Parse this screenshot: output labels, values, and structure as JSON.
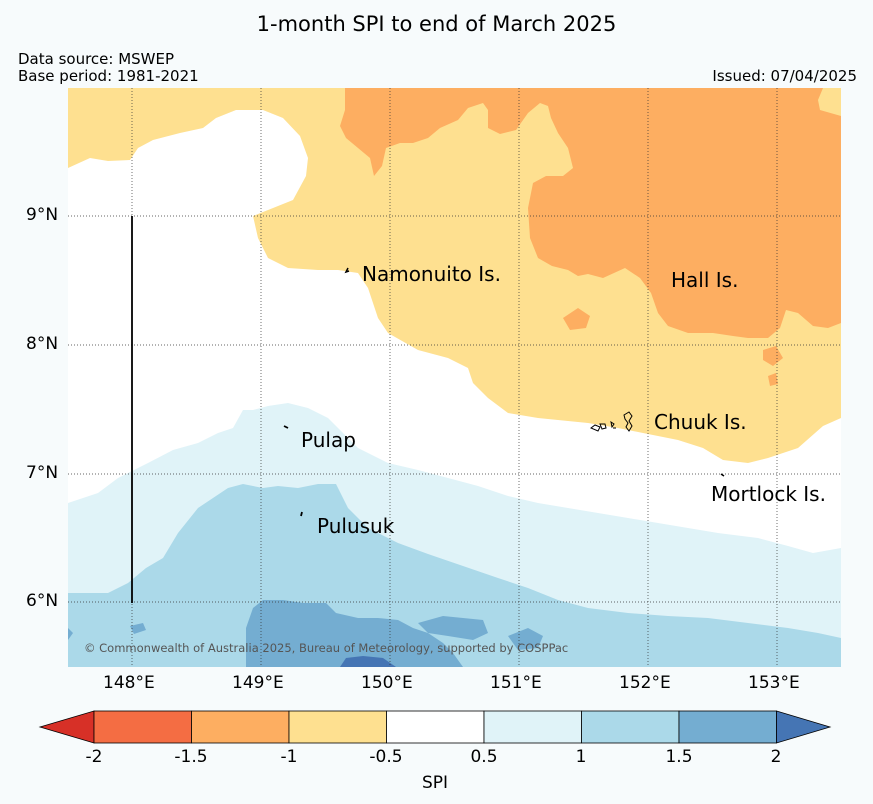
{
  "title": "1-month SPI to end of March 2025",
  "meta": {
    "data_source": "Data source: MSWEP",
    "base_period": "Base period: 1981-2021",
    "issued": "Issued: 07/04/2025"
  },
  "map": {
    "lon_ticks": [
      "148°E",
      "149°E",
      "150°E",
      "151°E",
      "152°E",
      "153°E"
    ],
    "lat_ticks": [
      "9°N",
      "8°N",
      "7°N",
      "6°N"
    ],
    "places": [
      {
        "name": "Namonuito Is."
      },
      {
        "name": "Hall Is."
      },
      {
        "name": "Chuuk Is."
      },
      {
        "name": "Mortlock Is."
      },
      {
        "name": "Pulap"
      },
      {
        "name": "Pulusuk"
      }
    ],
    "copyright": "© Commonwealth of Australia 2025, Bureau of Meteorology, supported by COSPPac"
  },
  "colorbar": {
    "title": "SPI",
    "labels": [
      "-2",
      "-1.5",
      "-1",
      "-0.5",
      "0.5",
      "1",
      "1.5",
      "2"
    ],
    "colors": [
      "#d73027",
      "#f46d43",
      "#fdae61",
      "#fee090",
      "#ffffff",
      "#e0f3f8",
      "#abd9e9",
      "#74add1",
      "#4575b4"
    ]
  }
}
